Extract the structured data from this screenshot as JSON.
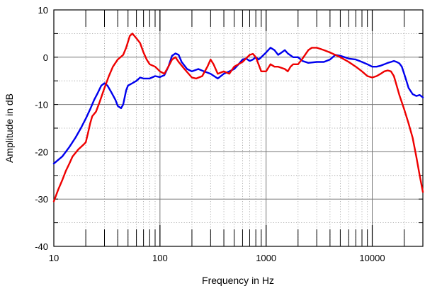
{
  "chart_data": {
    "type": "line",
    "xlabel": "Frequency in Hz",
    "ylabel": "Amplitude in dB",
    "xscale": "log",
    "xlim": [
      10,
      30000
    ],
    "ylim": [
      -40,
      10
    ],
    "grid": true,
    "x_ticks": [
      {
        "value": 10,
        "label": "10"
      },
      {
        "value": 100,
        "label": "100"
      },
      {
        "value": 1000,
        "label": "1000"
      },
      {
        "value": 10000,
        "label": "10000"
      }
    ],
    "y_ticks": [
      {
        "value": 10,
        "label": "10"
      },
      {
        "value": 0,
        "label": "0"
      },
      {
        "value": -10,
        "label": "-10"
      },
      {
        "value": -20,
        "label": "-20"
      },
      {
        "value": -30,
        "label": "-30"
      },
      {
        "value": -40,
        "label": "-40"
      }
    ],
    "series": [
      {
        "color": "#0000ee",
        "points": [
          [
            10,
            -22.5
          ],
          [
            12,
            -21
          ],
          [
            14,
            -19
          ],
          [
            16,
            -17
          ],
          [
            18,
            -15
          ],
          [
            20,
            -13
          ],
          [
            22,
            -11
          ],
          [
            24,
            -9
          ],
          [
            26,
            -7.5
          ],
          [
            28,
            -6
          ],
          [
            30,
            -5.5
          ],
          [
            32,
            -6
          ],
          [
            35,
            -7.5
          ],
          [
            38,
            -9
          ],
          [
            40,
            -10.3
          ],
          [
            43,
            -10.8
          ],
          [
            45,
            -10
          ],
          [
            48,
            -7
          ],
          [
            50,
            -6
          ],
          [
            55,
            -5.5
          ],
          [
            60,
            -5
          ],
          [
            65,
            -4.3
          ],
          [
            70,
            -4.5
          ],
          [
            80,
            -4.5
          ],
          [
            90,
            -4
          ],
          [
            100,
            -4.2
          ],
          [
            110,
            -3.8
          ],
          [
            120,
            -2
          ],
          [
            130,
            0.3
          ],
          [
            140,
            0.8
          ],
          [
            150,
            0.5
          ],
          [
            160,
            -1
          ],
          [
            180,
            -2.5
          ],
          [
            200,
            -3
          ],
          [
            230,
            -2.5
          ],
          [
            260,
            -3
          ],
          [
            300,
            -3.5
          ],
          [
            350,
            -4.5
          ],
          [
            400,
            -3.5
          ],
          [
            450,
            -3
          ],
          [
            500,
            -2.5
          ],
          [
            550,
            -1.5
          ],
          [
            600,
            -0.5
          ],
          [
            650,
            -0.3
          ],
          [
            700,
            -0.8
          ],
          [
            750,
            -0.5
          ],
          [
            800,
            0
          ],
          [
            850,
            -0.5
          ],
          [
            900,
            0
          ],
          [
            1000,
            1
          ],
          [
            1100,
            2
          ],
          [
            1200,
            1.5
          ],
          [
            1300,
            0.5
          ],
          [
            1400,
            1
          ],
          [
            1500,
            1.5
          ],
          [
            1600,
            0.8
          ],
          [
            1800,
            0
          ],
          [
            2000,
            0
          ],
          [
            2200,
            -0.8
          ],
          [
            2500,
            -1.2
          ],
          [
            3000,
            -1
          ],
          [
            3500,
            -1
          ],
          [
            4000,
            -0.5
          ],
          [
            4500,
            0.5
          ],
          [
            5000,
            0.3
          ],
          [
            5500,
            0
          ],
          [
            6000,
            -0.3
          ],
          [
            7000,
            -0.5
          ],
          [
            8000,
            -1
          ],
          [
            9000,
            -1.5
          ],
          [
            10000,
            -2
          ],
          [
            11000,
            -2
          ],
          [
            12000,
            -1.8
          ],
          [
            13000,
            -1.5
          ],
          [
            14000,
            -1.2
          ],
          [
            15000,
            -1
          ],
          [
            16000,
            -0.8
          ],
          [
            17000,
            -1
          ],
          [
            18000,
            -1.3
          ],
          [
            19000,
            -2
          ],
          [
            20000,
            -3.5
          ],
          [
            21000,
            -5
          ],
          [
            22000,
            -6.5
          ],
          [
            24000,
            -7.8
          ],
          [
            26000,
            -8.2
          ],
          [
            28000,
            -8
          ],
          [
            30000,
            -8.5
          ]
        ]
      },
      {
        "color": "#ee0000",
        "points": [
          [
            10,
            -30.5
          ],
          [
            11,
            -28
          ],
          [
            12,
            -26
          ],
          [
            13,
            -24
          ],
          [
            14,
            -22.5
          ],
          [
            15,
            -21
          ],
          [
            17,
            -19.5
          ],
          [
            18,
            -19
          ],
          [
            19,
            -18.5
          ],
          [
            20,
            -18
          ],
          [
            21,
            -16
          ],
          [
            22,
            -14
          ],
          [
            23,
            -12.5
          ],
          [
            25,
            -11.5
          ],
          [
            27,
            -9.5
          ],
          [
            30,
            -6.5
          ],
          [
            33,
            -4
          ],
          [
            36,
            -2
          ],
          [
            40,
            -0.5
          ],
          [
            45,
            0.5
          ],
          [
            48,
            2
          ],
          [
            52,
            4.5
          ],
          [
            55,
            5
          ],
          [
            60,
            4
          ],
          [
            65,
            3
          ],
          [
            70,
            1
          ],
          [
            75,
            -0.5
          ],
          [
            80,
            -1.5
          ],
          [
            90,
            -2
          ],
          [
            100,
            -3
          ],
          [
            110,
            -3.5
          ],
          [
            120,
            -2
          ],
          [
            130,
            -0.5
          ],
          [
            140,
            0
          ],
          [
            150,
            -1
          ],
          [
            170,
            -2.5
          ],
          [
            200,
            -4.3
          ],
          [
            220,
            -4.5
          ],
          [
            250,
            -4
          ],
          [
            280,
            -2
          ],
          [
            300,
            -0.5
          ],
          [
            320,
            -1.5
          ],
          [
            350,
            -3.5
          ],
          [
            400,
            -3
          ],
          [
            450,
            -3.5
          ],
          [
            500,
            -2
          ],
          [
            600,
            -1
          ],
          [
            700,
            0.5
          ],
          [
            750,
            0.7
          ],
          [
            800,
            0
          ],
          [
            900,
            -3
          ],
          [
            1000,
            -3
          ],
          [
            1100,
            -1.5
          ],
          [
            1200,
            -2
          ],
          [
            1300,
            -2
          ],
          [
            1500,
            -2.5
          ],
          [
            1600,
            -3
          ],
          [
            1700,
            -2
          ],
          [
            1800,
            -1.5
          ],
          [
            2000,
            -1.5
          ],
          [
            2200,
            -0.3
          ],
          [
            2500,
            1.5
          ],
          [
            2700,
            2
          ],
          [
            3000,
            2
          ],
          [
            3500,
            1.5
          ],
          [
            4000,
            1
          ],
          [
            5000,
            0
          ],
          [
            6000,
            -1
          ],
          [
            7000,
            -2
          ],
          [
            8000,
            -3
          ],
          [
            9000,
            -4
          ],
          [
            10000,
            -4.3
          ],
          [
            11000,
            -4
          ],
          [
            12000,
            -3.5
          ],
          [
            13000,
            -3
          ],
          [
            14000,
            -2.8
          ],
          [
            15000,
            -3
          ],
          [
            16000,
            -4
          ],
          [
            17000,
            -6
          ],
          [
            18000,
            -8
          ],
          [
            20000,
            -11
          ],
          [
            22000,
            -14
          ],
          [
            24000,
            -17
          ],
          [
            26000,
            -21
          ],
          [
            28000,
            -25
          ],
          [
            30000,
            -28.5
          ]
        ]
      }
    ]
  }
}
